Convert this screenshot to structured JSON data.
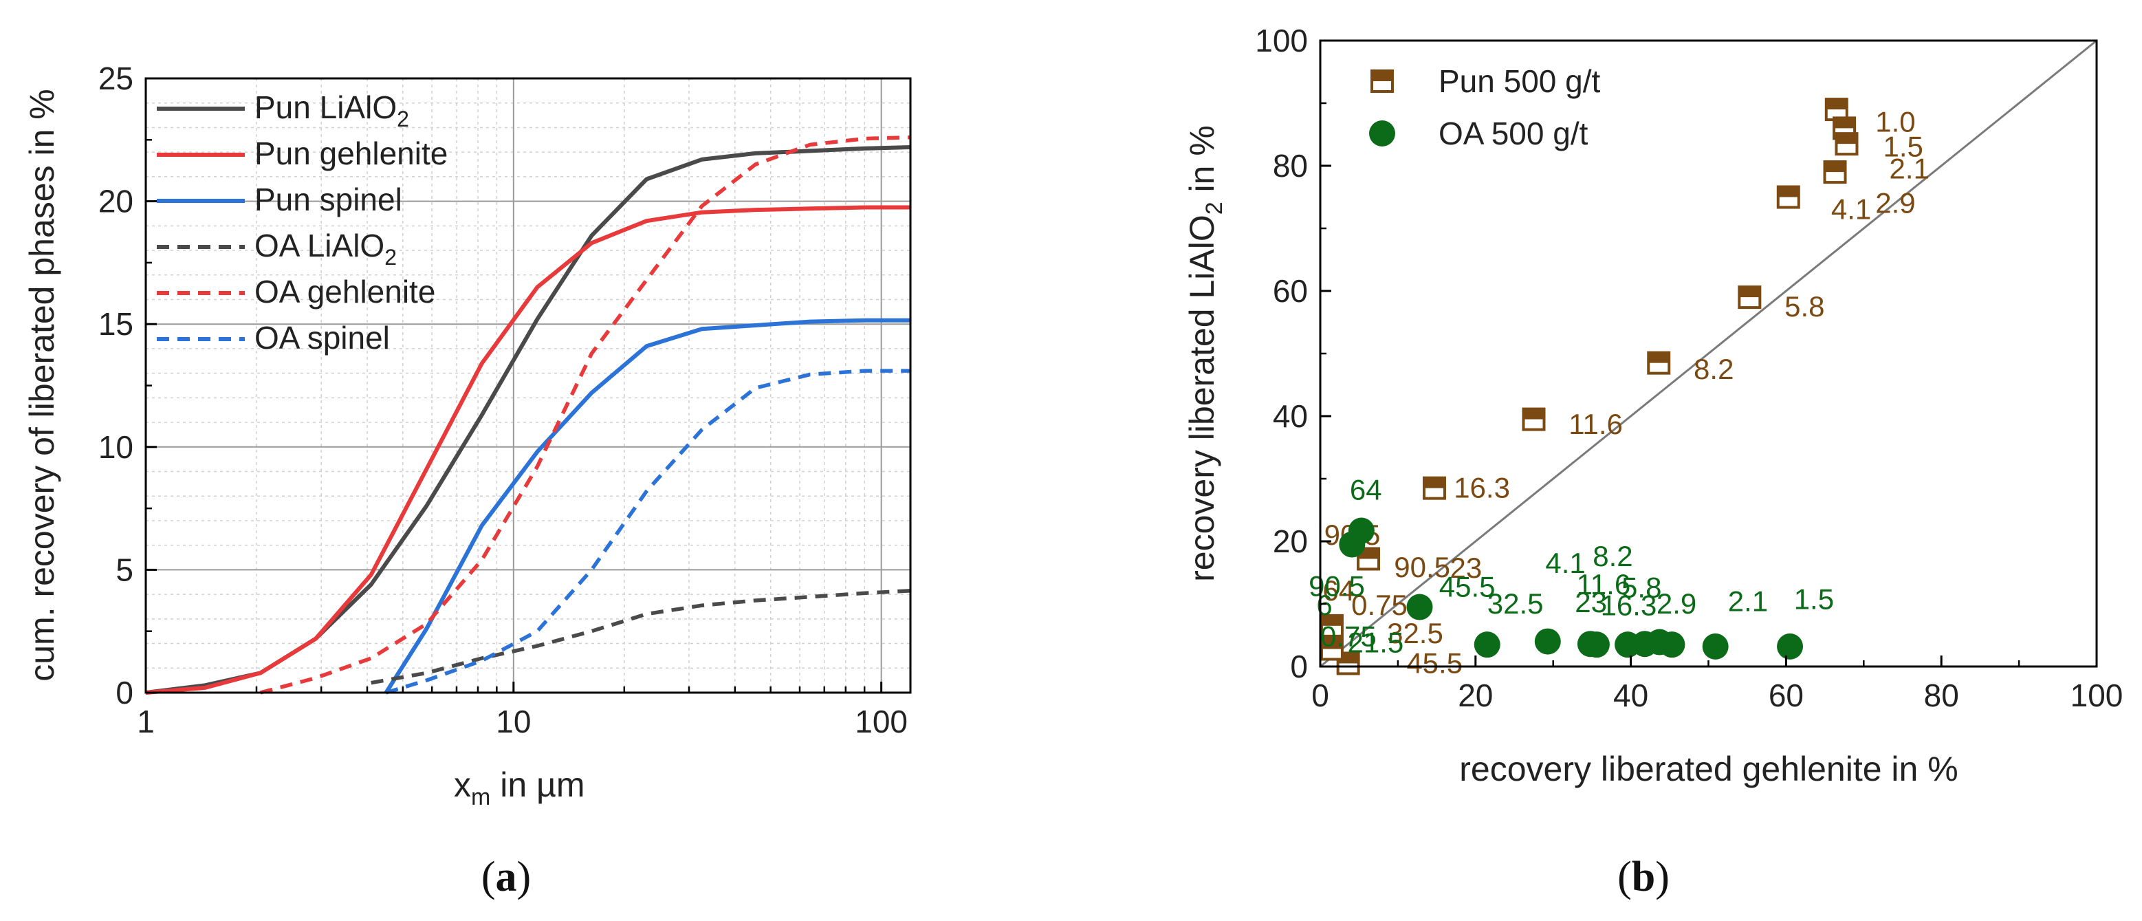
{
  "panels": {
    "a": "a",
    "b": "b"
  },
  "chart_data": [
    {
      "type": "line",
      "panel": "a",
      "xscale": "log",
      "xlim": [
        1,
        120
      ],
      "ylim": [
        0,
        25
      ],
      "xticks": [
        1,
        10,
        100
      ],
      "xtick_labels": [
        "1",
        "10",
        "100"
      ],
      "yticks": [
        0,
        5,
        10,
        15,
        20,
        25
      ],
      "ytick_labels": [
        "0",
        "5",
        "10",
        "15",
        "20",
        "25"
      ],
      "xlabel": "x",
      "xlabel_sub": "m",
      "xlabel_rest": " in µm",
      "ylabel": "cum. recovery of liberated phases in %",
      "legend_position": "top-left",
      "series": [
        {
          "name": "Pun LiAlO",
          "sub": "2",
          "color": "#4a4a4a",
          "dash": "solid",
          "x": [
            1,
            1.45,
            2.05,
            2.9,
            4.1,
            5.8,
            8.2,
            11.6,
            16.3,
            23,
            32.5,
            45.5,
            64,
            90.5,
            120
          ],
          "y": [
            0,
            0.3,
            0.8,
            2.2,
            4.4,
            7.6,
            11.3,
            15.2,
            18.6,
            20.9,
            21.7,
            21.95,
            22.05,
            22.15,
            22.2
          ]
        },
        {
          "name": "Pun gehlenite",
          "sub": "",
          "color": "#e8393b",
          "dash": "solid",
          "x": [
            1,
            1.45,
            2.05,
            2.9,
            4.1,
            5.8,
            8.2,
            11.6,
            16.3,
            23,
            32.5,
            45.5,
            64,
            90.5,
            120
          ],
          "y": [
            0,
            0.2,
            0.8,
            2.2,
            4.8,
            9.1,
            13.4,
            16.5,
            18.3,
            19.2,
            19.55,
            19.65,
            19.7,
            19.75,
            19.75
          ]
        },
        {
          "name": "Pun spinel",
          "sub": "",
          "color": "#2c73d8",
          "dash": "solid",
          "x": [
            4.5,
            5.8,
            8.2,
            11.6,
            16.3,
            23,
            32.5,
            45.5,
            64,
            90.5,
            120
          ],
          "y": [
            0,
            2.6,
            6.8,
            9.8,
            12.2,
            14.1,
            14.8,
            14.95,
            15.1,
            15.15,
            15.15
          ]
        },
        {
          "name": "OA LiAlO",
          "sub": "2",
          "color": "#4a4a4a",
          "dash": "dash",
          "x": [
            4.1,
            5.8,
            8.2,
            11.6,
            16.3,
            23,
            32.5,
            45.5,
            64,
            90.5,
            120
          ],
          "y": [
            0.4,
            0.8,
            1.4,
            1.9,
            2.5,
            3.2,
            3.55,
            3.75,
            3.9,
            4.05,
            4.15
          ]
        },
        {
          "name": "OA gehlenite",
          "sub": "",
          "color": "#e8393b",
          "dash": "dash",
          "x": [
            2.05,
            2.9,
            4.1,
            5.8,
            8.2,
            11.6,
            16.3,
            23,
            32.5,
            45.5,
            64,
            90.5,
            120
          ],
          "y": [
            0,
            0.6,
            1.4,
            2.8,
            5.4,
            9.2,
            13.8,
            16.8,
            19.8,
            21.5,
            22.3,
            22.55,
            22.6
          ]
        },
        {
          "name": "OA spinel",
          "sub": "",
          "color": "#2c73d8",
          "dash": "dash",
          "x": [
            4.5,
            5.8,
            8.2,
            11.6,
            16.3,
            23,
            32.5,
            45.5,
            64,
            90.5,
            120
          ],
          "y": [
            0,
            0.5,
            1.3,
            2.5,
            5.0,
            8.2,
            10.7,
            12.4,
            12.95,
            13.1,
            13.1
          ]
        }
      ]
    },
    {
      "type": "scatter",
      "panel": "b",
      "xlim": [
        0,
        100
      ],
      "ylim": [
        0,
        100
      ],
      "xticks": [
        0,
        20,
        40,
        60,
        80,
        100
      ],
      "xtick_labels": [
        "0",
        "20",
        "40",
        "60",
        "80",
        "100"
      ],
      "yticks": [
        0,
        20,
        40,
        60,
        80,
        100
      ],
      "ytick_labels": [
        "0",
        "20",
        "40",
        "60",
        "80",
        "100"
      ],
      "xlabel": "recovery liberated gehlenite in %",
      "ylabel": "recovery liberated LiAlO",
      "ylabel_sub": "2",
      "ylabel_rest": "  in %",
      "diagonal": {
        "x": [
          0,
          100
        ],
        "y": [
          0,
          100
        ]
      },
      "legend_position": "top-left",
      "series": [
        {
          "name": "Pun 500 g/t",
          "marker": "half-square",
          "color": "#7b4a12",
          "points": [
            {
              "x": 66.5,
              "y": 89,
              "label": "1.0",
              "dx": 5,
              "dy": -2
            },
            {
              "x": 67.5,
              "y": 86,
              "label": "1.5",
              "dx": 5,
              "dy": -3
            },
            {
              "x": 67.8,
              "y": 83.5,
              "label": "2.1",
              "dx": 5.5,
              "dy": -4
            },
            {
              "x": 66.3,
              "y": 79,
              "label": "2.9",
              "dx": 5.2,
              "dy": -5
            },
            {
              "x": 60.3,
              "y": 75,
              "label": "4.1",
              "dx": 5.5,
              "dy": -2
            },
            {
              "x": 55.3,
              "y": 59,
              "label": "5.8",
              "dx": 4.5,
              "dy": -1.5
            },
            {
              "x": 43.6,
              "y": 48.5,
              "label": "8.2",
              "dx": 4.5,
              "dy": -1
            },
            {
              "x": 27.5,
              "y": 39.5,
              "label": "11.6",
              "dx": 4.5,
              "dy": -0.8
            },
            {
              "x": 14.7,
              "y": 28.5,
              "label": "16.3",
              "dx": 2.5,
              "dy": 0
            },
            {
              "x": 6.2,
              "y": 17.2,
              "label": "23",
              "dx": 10.5,
              "dy": -1.5
            },
            {
              "x": 1.5,
              "y": 6.5,
              "label": "90.5",
              "dx": -1,
              "dy": 14.5
            },
            {
              "x": 3.6,
              "y": 0.5,
              "label": "45.5",
              "dx": 7.5,
              "dy": 0
            },
            {
              "x": 1.5,
              "y": 2.8,
              "label": "",
              "dx": 0,
              "dy": 0
            }
          ],
          "extra_labels": [
            {
              "x": 9.5,
              "y": 15.8,
              "label": "90.5"
            },
            {
              "x": 4,
              "y": 9.8,
              "label": "0.75"
            },
            {
              "x": 0.3,
              "y": 12.1,
              "label": "64"
            },
            {
              "x": 8.6,
              "y": 5.3,
              "label": "32.5"
            }
          ]
        },
        {
          "name": "OA 500 g/t",
          "marker": "circle",
          "color": "#0b6b18",
          "points": [
            {
              "x": 5.3,
              "y": 21.7,
              "label": "64",
              "dx": -1.5,
              "dy": 6.5
            },
            {
              "x": 4.1,
              "y": 19.5,
              "label": "",
              "dx": 0,
              "dy": 0
            },
            {
              "x": 12.8,
              "y": 9.5,
              "label": "45.5",
              "dx": 2.5,
              "dy": 3.2
            },
            {
              "x": 21.5,
              "y": 3.5,
              "label": "32.5",
              "dx": 0,
              "dy": 6.5
            },
            {
              "x": 29.3,
              "y": 4.0,
              "label": "23",
              "dx": 3.5,
              "dy": 6.2
            },
            {
              "x": 34.8,
              "y": 3.6,
              "label": "11.6",
              "dx": -1.8,
              "dy": 9.5
            },
            {
              "x": 35.6,
              "y": 3.5,
              "label": "16.3",
              "dx": 0.5,
              "dy": 6.2
            },
            {
              "x": 39.6,
              "y": 3.5,
              "label": "",
              "dx": 0,
              "dy": 0
            },
            {
              "x": 41.8,
              "y": 3.6,
              "label": "",
              "dx": 0,
              "dy": 0
            },
            {
              "x": 43.7,
              "y": 3.9,
              "label": "",
              "dx": 0,
              "dy": 0
            },
            {
              "x": 45.3,
              "y": 3.5,
              "label": "2.9",
              "dx": -2,
              "dy": 6.5
            },
            {
              "x": 50.9,
              "y": 3.2,
              "label": "2.1",
              "dx": 1.6,
              "dy": 7.2
            },
            {
              "x": 60.5,
              "y": 3.2,
              "label": "1.5",
              "dx": 0.5,
              "dy": 7.5
            }
          ],
          "extra_labels": [
            {
              "x": 29,
              "y": 16.5,
              "label": "4.1"
            },
            {
              "x": 35.1,
              "y": 17.6,
              "label": "8.2"
            },
            {
              "x": 38.8,
              "y": 12.6,
              "label": "5.8"
            },
            {
              "x": -1.5,
              "y": 12.8,
              "label": "90.5"
            },
            {
              "x": -0.5,
              "y": 9.8,
              "label": "6"
            },
            {
              "x": 0,
              "y": 4.8,
              "label": "0.75"
            },
            {
              "x": 3.5,
              "y": 3.8,
              "label": "21.5"
            }
          ]
        }
      ]
    }
  ]
}
